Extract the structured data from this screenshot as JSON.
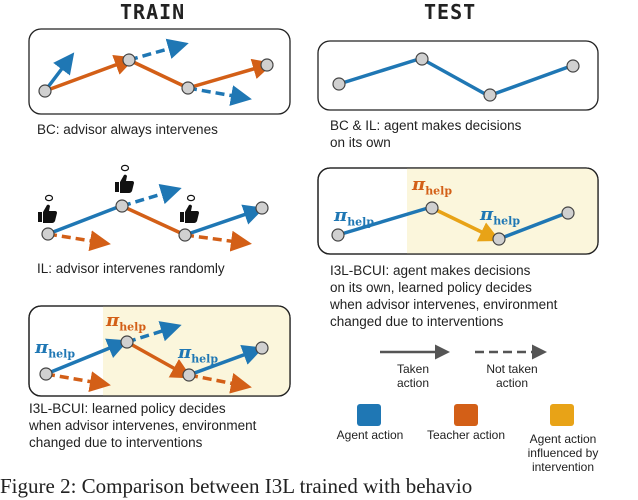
{
  "headers": {
    "train": "TRAIN",
    "test": "TEST"
  },
  "captions": {
    "train_bc": "BC: advisor always intervenes",
    "train_il": "IL: advisor intervenes randomly",
    "train_i3l": "I3L-BCUI: learned policy decides\nwhen advisor intervenes, environment\nchanged due to interventions",
    "test_bc_il": "BC & IL: agent makes decisions\non its own",
    "test_i3l": "I3L-BCUI: agent makes decisions\non its own, learned policy decides\nwhen advisor intervenes, environment\nchanged due to interventions"
  },
  "pi_label": {
    "symbol": "π",
    "subscript": "help"
  },
  "legend": {
    "taken": "Taken\naction",
    "not_taken": "Not taken\naction",
    "agent": "Agent action",
    "teacher": "Teacher action",
    "influenced": "Agent action\ninfluenced by\nintervention"
  },
  "colors": {
    "agent": "#1f77b4",
    "teacher": "#d35f17",
    "influenced": "#e8a317",
    "highlight": "#fbf6dc",
    "node": "#d0d0d0"
  },
  "figure_caption": "Figure 2: Comparison between I3L trained with behavio"
}
